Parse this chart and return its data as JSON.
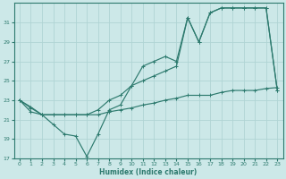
{
  "line_straight": {
    "x": [
      0,
      1,
      2,
      3,
      4,
      5,
      6,
      7,
      8,
      9,
      10,
      11,
      12,
      13,
      14,
      15,
      16,
      17,
      18,
      19,
      20,
      21,
      22,
      23
    ],
    "y": [
      23,
      22.2,
      21.5,
      21.5,
      21.5,
      21.5,
      21.5,
      22.0,
      23.0,
      23.5,
      24.5,
      25.0,
      25.5,
      26.0,
      26.5,
      31.5,
      29.0,
      32.0,
      32.5,
      32.5,
      32.5,
      32.5,
      32.5,
      24.0
    ]
  },
  "line_zigzag": {
    "x": [
      0,
      1,
      2,
      3,
      4,
      5,
      6,
      7,
      8,
      9,
      10,
      11,
      12,
      13,
      14,
      15,
      16,
      17,
      18,
      19,
      20,
      21,
      22,
      23
    ],
    "y": [
      23,
      21.8,
      21.5,
      20.5,
      19.5,
      19.3,
      17.2,
      19.5,
      22.0,
      22.5,
      24.5,
      26.5,
      27.0,
      27.5,
      27.0,
      31.5,
      29.0,
      32.0,
      32.5,
      32.5,
      32.5,
      32.5,
      32.5,
      24.0
    ]
  },
  "line_flat": {
    "x": [
      0,
      1,
      2,
      3,
      4,
      5,
      6,
      7,
      8,
      9,
      10,
      11,
      12,
      13,
      14,
      15,
      16,
      17,
      18,
      19,
      20,
      21,
      22,
      23
    ],
    "y": [
      23,
      22.3,
      21.5,
      21.5,
      21.5,
      21.5,
      21.5,
      21.5,
      21.8,
      22.0,
      22.2,
      22.5,
      22.7,
      23.0,
      23.2,
      23.5,
      23.5,
      23.5,
      23.8,
      24.0,
      24.0,
      24.0,
      24.2,
      24.3
    ]
  },
  "xlabel": "Humidex (Indice chaleur)",
  "xlim": [
    -0.5,
    23.5
  ],
  "ylim": [
    17,
    33
  ],
  "yticks": [
    17,
    19,
    21,
    23,
    25,
    27,
    29,
    31
  ],
  "xticks": [
    0,
    1,
    2,
    3,
    4,
    5,
    6,
    7,
    8,
    9,
    10,
    11,
    12,
    13,
    14,
    15,
    16,
    17,
    18,
    19,
    20,
    21,
    22,
    23
  ],
  "bg_color": "#cce8e8",
  "grid_color": "#b0d4d4",
  "line_color": "#2d7a6e",
  "marker": "+",
  "marker_size": 3.5,
  "linewidth": 0.85
}
